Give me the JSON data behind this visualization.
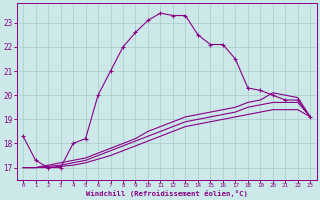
{
  "xlabel": "Windchill (Refroidissement éolien,°C)",
  "background_color": "#cce8e8",
  "grid_color": "#aacccc",
  "line_color": "#880088",
  "x_hours": [
    0,
    1,
    2,
    3,
    4,
    5,
    6,
    7,
    8,
    9,
    10,
    11,
    12,
    13,
    14,
    15,
    16,
    17,
    18,
    19,
    20,
    21,
    22,
    23
  ],
  "temp_line": [
    18.3,
    17.3,
    17.0,
    17.0,
    18.0,
    18.2,
    20.0,
    21.0,
    22.0,
    22.6,
    23.1,
    23.4,
    23.3,
    23.3,
    22.5,
    22.1,
    22.1,
    21.5,
    20.3,
    20.2,
    20.0,
    19.8,
    19.8,
    19.1
  ],
  "smooth_line1": [
    17.0,
    17.0,
    17.1,
    17.2,
    17.3,
    17.4,
    17.6,
    17.8,
    18.0,
    18.2,
    18.5,
    18.7,
    18.9,
    19.1,
    19.2,
    19.3,
    19.4,
    19.5,
    19.7,
    19.8,
    20.1,
    20.0,
    19.9,
    19.1
  ],
  "smooth_line2": [
    17.0,
    17.0,
    17.05,
    17.1,
    17.2,
    17.3,
    17.5,
    17.7,
    17.9,
    18.1,
    18.3,
    18.5,
    18.7,
    18.9,
    19.0,
    19.1,
    19.2,
    19.3,
    19.5,
    19.6,
    19.7,
    19.7,
    19.7,
    19.1
  ],
  "smooth_line3": [
    17.0,
    17.0,
    17.0,
    17.05,
    17.1,
    17.2,
    17.35,
    17.5,
    17.7,
    17.9,
    18.1,
    18.3,
    18.5,
    18.7,
    18.8,
    18.9,
    19.0,
    19.1,
    19.2,
    19.3,
    19.4,
    19.4,
    19.4,
    19.1
  ],
  "ylim": [
    16.5,
    23.8
  ],
  "yticks": [
    17,
    18,
    19,
    20,
    21,
    22,
    23
  ],
  "xlim": [
    -0.5,
    23.5
  ]
}
